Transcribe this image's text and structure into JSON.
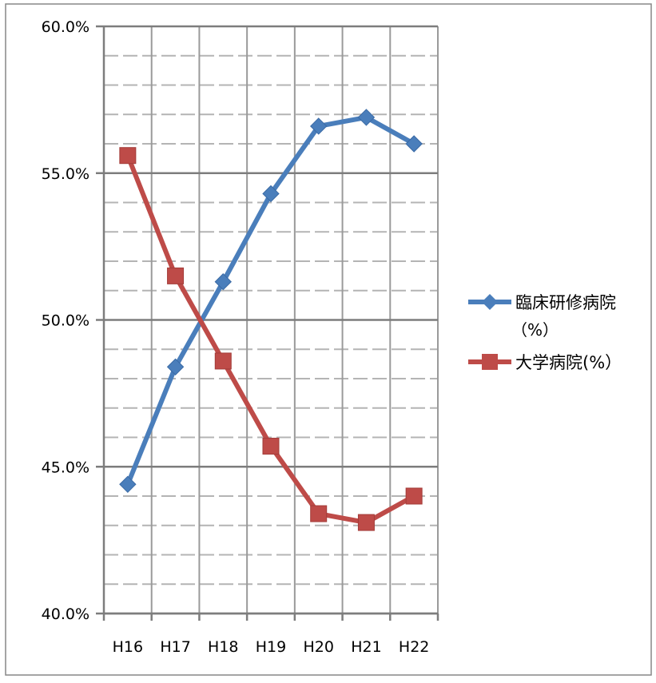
{
  "chart_data": {
    "type": "line",
    "title": "",
    "xlabel": "",
    "ylabel": "",
    "categories": [
      "H16",
      "H17",
      "H18",
      "H19",
      "H20",
      "H21",
      "H22"
    ],
    "ylim": [
      40.0,
      60.0
    ],
    "y_major_step": 5.0,
    "y_minor_step": 1.0,
    "y_tick_labels": [
      "40.0%",
      "45.0%",
      "50.0%",
      "55.0%",
      "60.0%"
    ],
    "grid": true,
    "legend_position": "right",
    "series": [
      {
        "name": "臨床研修病院",
        "name_suffix": "（%）",
        "values": [
          44.4,
          48.4,
          51.3,
          54.3,
          56.6,
          56.9,
          56.0
        ],
        "color": "#4a7ebb",
        "marker": "diamond"
      },
      {
        "name": "大学病院(%）",
        "name_suffix": "",
        "values": [
          55.6,
          51.5,
          48.6,
          45.7,
          43.4,
          43.1,
          44.0
        ],
        "color": "#be4b48",
        "marker": "square"
      }
    ]
  }
}
